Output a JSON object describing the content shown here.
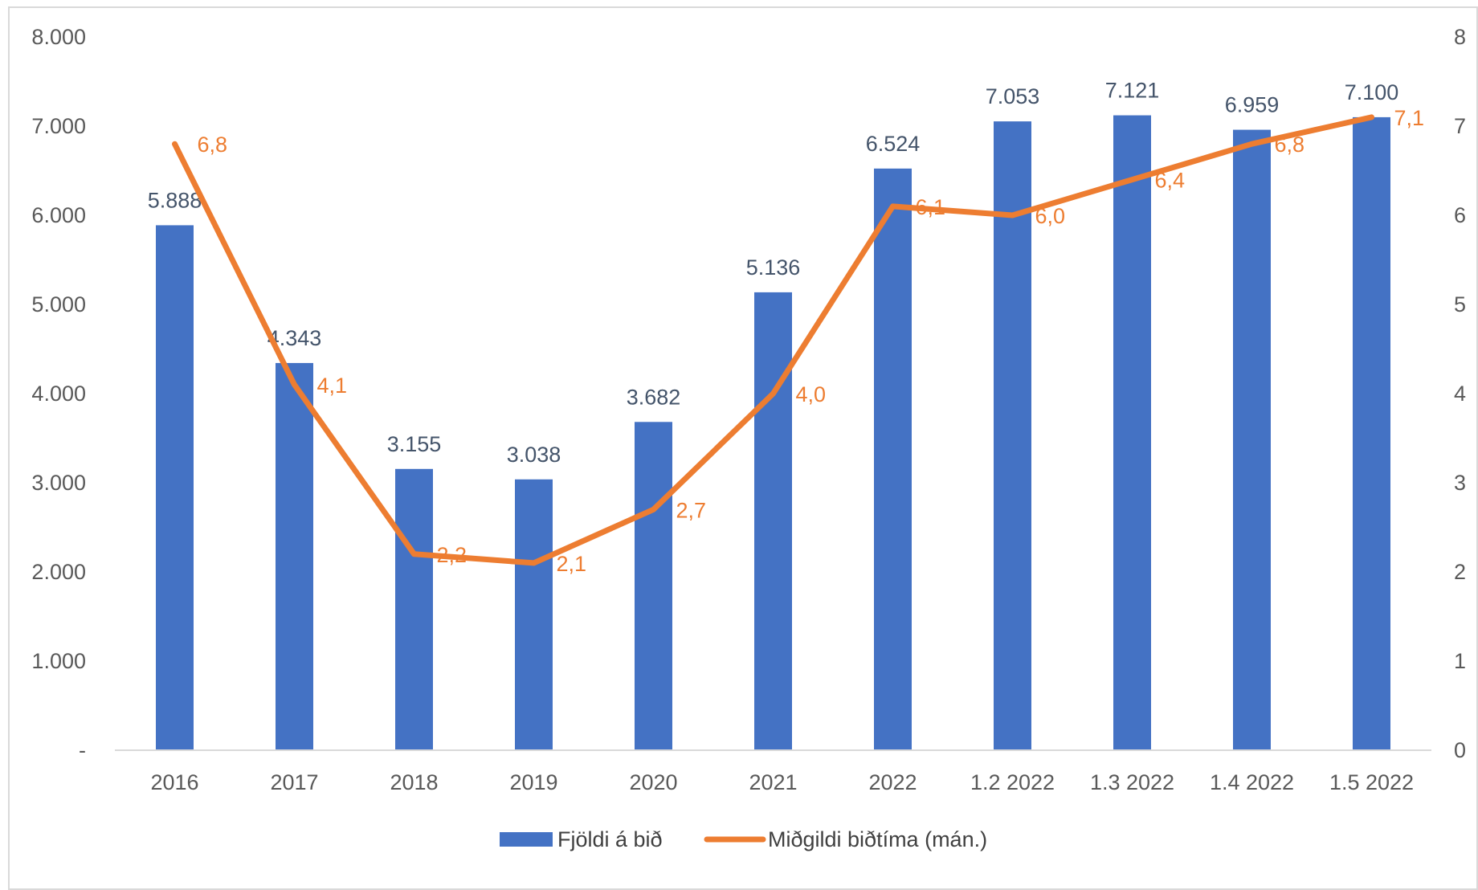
{
  "chart_data": {
    "type": "bar",
    "categories": [
      "2016",
      "2017",
      "2018",
      "2019",
      "2020",
      "2021",
      "2022",
      "1.2 2022",
      "1.3 2022",
      "1.4 2022",
      "1.5 2022"
    ],
    "series": [
      {
        "name": "Fjöldi á bið",
        "type": "bar",
        "axis": "left",
        "color": "#4472c4",
        "values": [
          5888,
          4343,
          3155,
          3038,
          3682,
          5136,
          6524,
          7053,
          7121,
          6959,
          7100
        ],
        "labels": [
          "5.888",
          "4.343",
          "3.155",
          "3.038",
          "3.682",
          "5.136",
          "6.524",
          "7.053",
          "7.121",
          "6.959",
          "7.100"
        ]
      },
      {
        "name": "Miðgildi biðtíma (mán.)",
        "type": "line",
        "axis": "right",
        "color": "#ed7d31",
        "values": [
          6.8,
          4.1,
          2.2,
          2.1,
          2.7,
          4.0,
          6.1,
          6.0,
          6.4,
          6.8,
          7.1
        ],
        "labels": [
          "6,8",
          "4,1",
          "2,2",
          "2,1",
          "2,7",
          "4,0",
          "6,1",
          "6,0",
          "6,4",
          "6,8",
          "7,1"
        ]
      }
    ],
    "y_left": {
      "ylim": [
        0,
        8000
      ],
      "ticks": [
        0,
        1000,
        2000,
        3000,
        4000,
        5000,
        6000,
        7000,
        8000
      ],
      "tick_labels": [
        "-",
        "1.000",
        "2.000",
        "3.000",
        "4.000",
        "5.000",
        "6.000",
        "7.000",
        "8.000"
      ]
    },
    "y_right": {
      "ylim": [
        0,
        8
      ],
      "ticks": [
        0,
        1,
        2,
        3,
        4,
        5,
        6,
        7,
        8
      ],
      "tick_labels": [
        "0",
        "1",
        "2",
        "3",
        "4",
        "5",
        "6",
        "7",
        "8"
      ]
    },
    "title": "",
    "xlabel": "",
    "ylabel": "",
    "grid": false,
    "legend": "bottom"
  }
}
